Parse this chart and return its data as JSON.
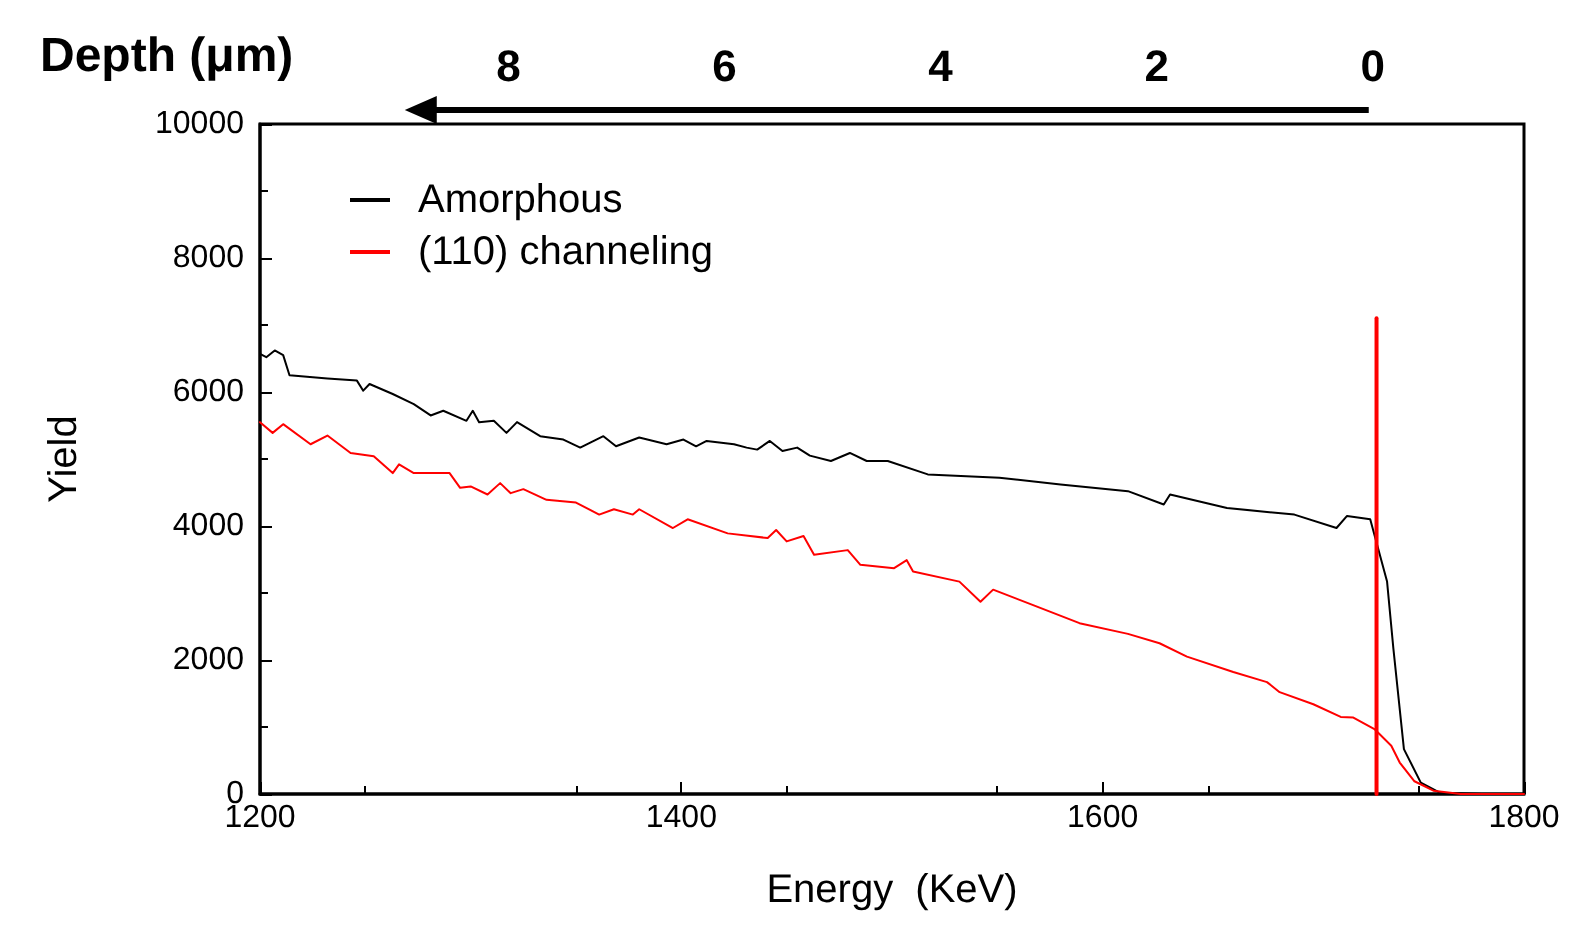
{
  "chart_data": {
    "type": "line",
    "xlabel": "Energy  (KeV)",
    "ylabel": "Yield",
    "x2label": "Depth (μm)",
    "xlim": [
      1200,
      1800
    ],
    "xticks": [
      1200,
      1400,
      1600,
      1800
    ],
    "ylim": [
      0,
      10000
    ],
    "yticks": [
      0,
      2000,
      4000,
      6000,
      8000,
      10000
    ],
    "x2lim": [
      10.3,
      -1.4
    ],
    "x2ticks": [
      8,
      6,
      4,
      2,
      0
    ],
    "legend": "top left",
    "grid": false,
    "marker": "none",
    "line_style": "solid",
    "series": [
      {
        "name": "Amorphous",
        "color": "#000000",
        "x": [
          1200,
          1203,
          1207,
          1211,
          1214,
          1232,
          1246,
          1249,
          1252,
          1263,
          1273,
          1281,
          1287,
          1298,
          1301,
          1304,
          1311,
          1317,
          1322,
          1333,
          1344,
          1352,
          1363,
          1369,
          1380,
          1393,
          1401,
          1407,
          1412,
          1425,
          1431,
          1436,
          1442,
          1448,
          1455,
          1461,
          1471,
          1480,
          1488,
          1498,
          1517,
          1551,
          1580,
          1612,
          1629,
          1632,
          1659,
          1691,
          1711,
          1716,
          1727,
          1735,
          1738,
          1743,
          1751,
          1760,
          1780,
          1800
        ],
        "values": [
          6570,
          6520,
          6620,
          6550,
          6250,
          6200,
          6170,
          6020,
          6120,
          5970,
          5820,
          5650,
          5720,
          5570,
          5720,
          5550,
          5570,
          5390,
          5550,
          5340,
          5290,
          5170,
          5340,
          5190,
          5320,
          5220,
          5290,
          5190,
          5270,
          5220,
          5170,
          5140,
          5270,
          5120,
          5170,
          5050,
          4970,
          5090,
          4970,
          4970,
          4770,
          4720,
          4620,
          4520,
          4320,
          4470,
          4270,
          4170,
          3970,
          4150,
          4100,
          3170,
          2170,
          670,
          170,
          20,
          0,
          0
        ]
      },
      {
        "name": "(110) channeling",
        "color": "#ff0000",
        "x": [
          1200,
          1206,
          1211,
          1224,
          1232,
          1243,
          1254,
          1263,
          1266,
          1273,
          1290,
          1295,
          1300,
          1308,
          1314,
          1319,
          1325,
          1336,
          1350,
          1361,
          1368,
          1377,
          1380,
          1396,
          1403,
          1422,
          1441,
          1445,
          1450,
          1458,
          1463,
          1479,
          1485,
          1501,
          1507,
          1510,
          1532,
          1542,
          1548,
          1567,
          1589,
          1612,
          1627,
          1640,
          1662,
          1678,
          1684,
          1700,
          1713,
          1719,
          1729,
          1737,
          1741,
          1748,
          1757,
          1770,
          1800
        ],
        "values": [
          5550,
          5390,
          5520,
          5220,
          5350,
          5090,
          5040,
          4790,
          4920,
          4790,
          4790,
          4570,
          4590,
          4470,
          4640,
          4490,
          4550,
          4390,
          4350,
          4170,
          4250,
          4170,
          4250,
          3970,
          4100,
          3890,
          3820,
          3940,
          3770,
          3850,
          3570,
          3640,
          3420,
          3370,
          3490,
          3320,
          3170,
          2870,
          3050,
          2820,
          2550,
          2390,
          2250,
          2050,
          1820,
          1670,
          1520,
          1340,
          1150,
          1140,
          970,
          720,
          470,
          190,
          50,
          0,
          0
        ]
      },
      {
        "color": "#ff0000",
        "x": [
          1730,
          1730
        ],
        "values": [
          0,
          7100
        ]
      }
    ]
  }
}
